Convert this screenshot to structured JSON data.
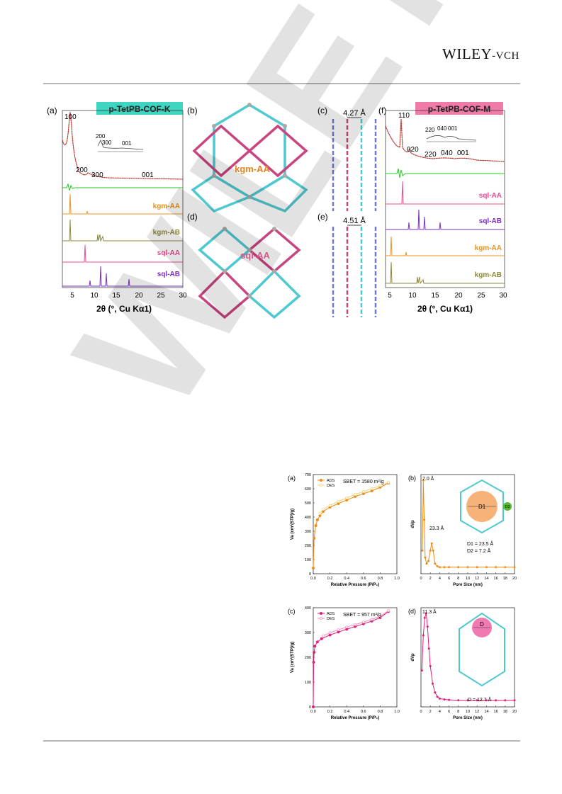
{
  "header": {
    "publisher_main": "WILEY",
    "publisher_suffix": "-VCH"
  },
  "watermark": {
    "text": "WILEY-"
  },
  "figure1": {
    "panel_a": {
      "label": "(a)",
      "title": "p-TetPB-COF-K",
      "title_color": "#3ed5c1",
      "peaks": [
        "100",
        "200",
        "300",
        "001"
      ],
      "inset_peaks": [
        "200",
        "300",
        "001"
      ],
      "traces": [
        "kgm-AA",
        "kgm-AB",
        "sql-AA",
        "sql-AB"
      ],
      "trace_colors": [
        "#e8921e",
        "#8b8a3a",
        "#e64c92",
        "#7a2fbf"
      ]
    },
    "panel_b": {
      "label": "(b)",
      "name": "kgm-AA",
      "color": "#e8821e"
    },
    "panel_c": {
      "label": "(c)",
      "spacing": "4.27 Å"
    },
    "panel_d": {
      "label": "(d)",
      "name": "sql-AA",
      "color": "#f0649c"
    },
    "panel_e": {
      "label": "(e)",
      "spacing": "4.51 Å"
    },
    "panel_f": {
      "label": "(f)",
      "title": "p-TetPB-COF-M",
      "title_color": "#f07aa8",
      "peaks": [
        "110",
        "020",
        "220",
        "040",
        "001"
      ],
      "inset_peaks": [
        "220",
        "040",
        "001"
      ],
      "traces": [
        "sql-AA",
        "sql-AB",
        "kgm-AA",
        "kgm-AB"
      ],
      "trace_colors": [
        "#e64c92",
        "#7a2fbf",
        "#e8921e",
        "#8b8a3a"
      ]
    },
    "xaxis": {
      "label": "2θ (°, Cu Kα1)",
      "ticks": [
        "5",
        "10",
        "15",
        "20",
        "25",
        "30"
      ]
    }
  },
  "chart_data": [
    {
      "type": "line",
      "id": "sorption-a",
      "label": "(a)",
      "xlabel": "Relative Pressure (P/P₀)",
      "ylabel": "Va (cm³(STP)/g)",
      "xlim": [
        0,
        1.0
      ],
      "ylim": [
        0,
        700
      ],
      "xticks": [
        "0.0",
        "0.2",
        "0.4",
        "0.6",
        "0.8",
        "1.0"
      ],
      "yticks": [
        "0",
        "100",
        "200",
        "300",
        "400",
        "500",
        "600",
        "700"
      ],
      "annotation": "SBET = 1580 m²/g",
      "legend": [
        "ADS",
        "DES"
      ],
      "colors": [
        "#f08c14",
        "#f0d27c"
      ],
      "series": [
        {
          "name": "ADS",
          "x": [
            0.0,
            0.01,
            0.03,
            0.05,
            0.08,
            0.12,
            0.2,
            0.3,
            0.4,
            0.5,
            0.6,
            0.7,
            0.8,
            0.9
          ],
          "y": [
            40,
            250,
            340,
            380,
            410,
            440,
            470,
            495,
            520,
            545,
            565,
            585,
            610,
            640
          ]
        },
        {
          "name": "DES",
          "x": [
            0.9,
            0.8,
            0.7,
            0.6,
            0.5,
            0.4,
            0.3,
            0.2,
            0.12,
            0.08
          ],
          "y": [
            645,
            622,
            600,
            580,
            560,
            535,
            510,
            482,
            455,
            425
          ]
        }
      ]
    },
    {
      "type": "line",
      "id": "psd-b",
      "label": "(b)",
      "xlabel": "Pore Size (nm)",
      "ylabel": "dVp",
      "xlim": [
        0,
        20
      ],
      "xticks": [
        "0",
        "2",
        "4",
        "6",
        "8",
        "10",
        "12",
        "14",
        "16",
        "18",
        "20"
      ],
      "peak_labels": [
        "7.0 Å",
        "23.3 Å"
      ],
      "notes": [
        "D1",
        "D2",
        "D1 = 23.5 Å",
        "D2 = 7.2 Å"
      ],
      "color": "#f08c14",
      "x": [
        0.3,
        0.5,
        0.7,
        0.9,
        1.2,
        1.6,
        2.0,
        2.3,
        2.6,
        3.0,
        3.5,
        4,
        5,
        6,
        8,
        10,
        12,
        14,
        16,
        18,
        20
      ],
      "y": [
        0.2,
        1.0,
        0.55,
        0.12,
        0.05,
        0.08,
        0.2,
        0.28,
        0.2,
        0.05,
        0.02,
        0.01,
        0.01,
        0.01,
        0.01,
        0.01,
        0.01,
        0.01,
        0.01,
        0.01,
        0.01
      ]
    },
    {
      "type": "line",
      "id": "sorption-c",
      "label": "(c)",
      "xlabel": "Relative Pressure (P/P₀)",
      "ylabel": "Va (cm³(STP)/g)",
      "xlim": [
        0,
        1.0
      ],
      "ylim": [
        0,
        400
      ],
      "xticks": [
        "0.0",
        "0.2",
        "0.4",
        "0.6",
        "0.8",
        "1.0"
      ],
      "yticks": [
        "0",
        "100",
        "200",
        "300",
        "400"
      ],
      "annotation": "SBET = 957 m²/g",
      "legend": [
        "ADS",
        "DES"
      ],
      "colors": [
        "#e01e78",
        "#f58cbc"
      ],
      "series": [
        {
          "name": "ADS",
          "x": [
            0.0,
            0.005,
            0.01,
            0.02,
            0.05,
            0.1,
            0.2,
            0.3,
            0.4,
            0.5,
            0.6,
            0.7,
            0.8,
            0.9
          ],
          "y": [
            0,
            180,
            220,
            245,
            262,
            275,
            290,
            302,
            313,
            324,
            335,
            346,
            360,
            385
          ]
        },
        {
          "name": "DES",
          "x": [
            0.9,
            0.8,
            0.7,
            0.6,
            0.5,
            0.4,
            0.3,
            0.2,
            0.12
          ],
          "y": [
            388,
            366,
            353,
            342,
            332,
            322,
            311,
            299,
            287
          ]
        }
      ]
    },
    {
      "type": "line",
      "id": "psd-d",
      "label": "(d)",
      "xlabel": "Pore Size (nm)",
      "ylabel": "dVp",
      "xlim": [
        0,
        20
      ],
      "xticks": [
        "0",
        "2",
        "4",
        "6",
        "8",
        "10",
        "12",
        "14",
        "16",
        "18",
        "20"
      ],
      "peak_labels": [
        "11.3 Å"
      ],
      "notes": [
        "D",
        "D = 12.7 Å"
      ],
      "color": "#e01e78",
      "x": [
        0.2,
        0.5,
        0.8,
        1.1,
        1.4,
        1.7,
        2.0,
        2.5,
        3.0,
        3.5,
        4,
        5,
        6,
        8,
        10,
        12,
        14,
        16,
        18,
        20
      ],
      "y": [
        0.35,
        0.75,
        0.95,
        1.0,
        0.85,
        0.6,
        0.4,
        0.2,
        0.1,
        0.05,
        0.03,
        0.02,
        0.015,
        0.01,
        0.01,
        0.01,
        0.01,
        0.01,
        0.01,
        0.01
      ]
    }
  ]
}
